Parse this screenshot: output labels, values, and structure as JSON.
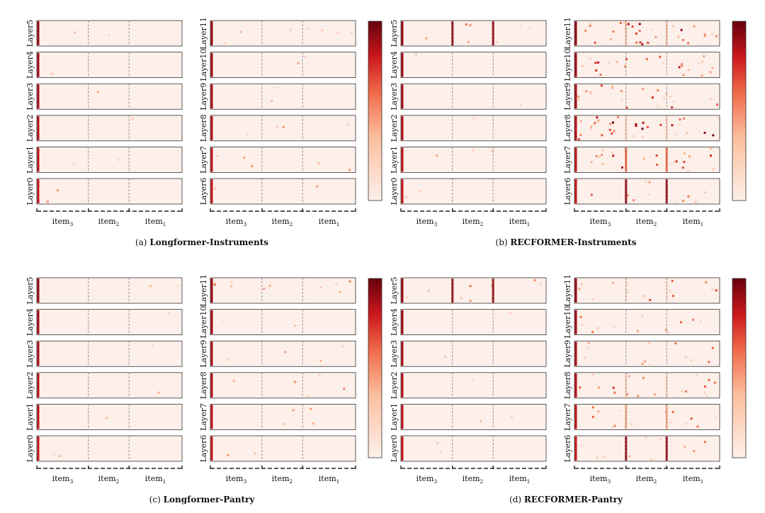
{
  "chart_data": {
    "type": "heatmap",
    "colormap": {
      "low": "#fdf0ea",
      "high": "#67000d"
    },
    "x_groups": [
      {
        "label": "item",
        "subscript": "3"
      },
      {
        "label": "item",
        "subscript": "2"
      },
      {
        "label": "item",
        "subscript": "1"
      }
    ],
    "panels": [
      {
        "id": "a",
        "caption_prefix": "(a)",
        "caption_title": "Longformer-Instruments",
        "left_layers": [
          "Layer5",
          "Layer4",
          "Layer3",
          "Layer2",
          "Layer1",
          "Layer0"
        ],
        "right_layers": [
          "Layer11",
          "Layer10",
          "Layer9",
          "Layer8",
          "Layer7",
          "Layer6"
        ],
        "left_intensity": [
          0.02,
          0.01,
          0.01,
          0.01,
          0.02,
          0.02
        ],
        "right_intensity": [
          0.06,
          0.02,
          0.02,
          0.03,
          0.04,
          0.02
        ],
        "left_separator_strength": [
          0,
          0,
          0,
          0,
          0,
          0
        ],
        "right_separator_strength": [
          0,
          0,
          0,
          0,
          0,
          0
        ]
      },
      {
        "id": "b",
        "caption_prefix": "(b)",
        "caption_title": "RECFORMER-Instruments",
        "left_layers": [
          "Layer5",
          "Layer4",
          "Layer3",
          "Layer2",
          "Layer1",
          "Layer0"
        ],
        "right_layers": [
          "Layer11",
          "Layer10",
          "Layer9",
          "Layer8",
          "Layer7",
          "Layer6"
        ],
        "left_intensity": [
          0.06,
          0.01,
          0.01,
          0.01,
          0.03,
          0.02
        ],
        "right_intensity": [
          0.25,
          0.2,
          0.18,
          0.3,
          0.2,
          0.1
        ],
        "left_separator_strength": [
          0.9,
          0,
          0,
          0,
          0,
          0
        ],
        "right_separator_strength": [
          0.3,
          0,
          0,
          0.2,
          0.6,
          0.9
        ]
      },
      {
        "id": "c",
        "caption_prefix": "(c)",
        "caption_title": "Longformer-Pantry",
        "left_layers": [
          "Layer5",
          "Layer4",
          "Layer3",
          "Layer2",
          "Layer1",
          "Layer0"
        ],
        "right_layers": [
          "Layer11",
          "Layer10",
          "Layer9",
          "Layer8",
          "Layer7",
          "Layer6"
        ],
        "left_intensity": [
          0.02,
          0.01,
          0.01,
          0.01,
          0.01,
          0.02
        ],
        "right_intensity": [
          0.08,
          0.02,
          0.03,
          0.05,
          0.03,
          0.02
        ],
        "left_separator_strength": [
          0,
          0,
          0,
          0,
          0,
          0
        ],
        "right_separator_strength": [
          0,
          0,
          0,
          0,
          0,
          0
        ]
      },
      {
        "id": "d",
        "caption_prefix": "(d)",
        "caption_title": "RECFORMER-Pantry",
        "left_layers": [
          "Layer5",
          "Layer4",
          "Layer3",
          "Layer2",
          "Layer1",
          "Layer0"
        ],
        "right_layers": [
          "Layer11",
          "Layer10",
          "Layer9",
          "Layer8",
          "Layer7",
          "Layer6"
        ],
        "left_intensity": [
          0.07,
          0.01,
          0.01,
          0.01,
          0.02,
          0.02
        ],
        "right_intensity": [
          0.12,
          0.1,
          0.1,
          0.15,
          0.12,
          0.08
        ],
        "left_separator_strength": [
          0.9,
          0,
          0,
          0,
          0,
          0
        ],
        "right_separator_strength": [
          0.1,
          0,
          0,
          0.2,
          0.4,
          0.9
        ]
      }
    ]
  }
}
